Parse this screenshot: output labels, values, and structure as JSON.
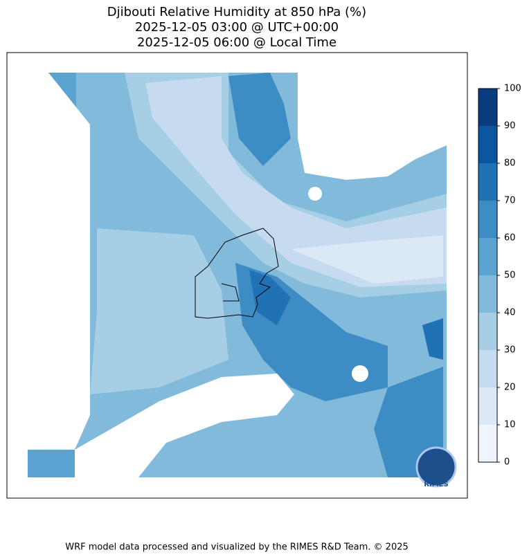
{
  "title": {
    "lines": [
      "Djibouti Relative Humidity at 850 hPa (%)",
      "2025-12-05 03:00 @ UTC+00:00",
      "2025-12-05 06:00 @ Local Time"
    ]
  },
  "colorbar": {
    "ticks": [
      0,
      10,
      20,
      30,
      40,
      50,
      60,
      70,
      80,
      90,
      100
    ],
    "colors": [
      "#eef5fc",
      "#dbe9f6",
      "#c6dbef",
      "#a6cee4",
      "#82badb",
      "#5ba3d0",
      "#3d8dc4",
      "#2171b5",
      "#0c56a0",
      "#083c7d"
    ]
  },
  "logo": {
    "text": "RIMES"
  },
  "footer": "WRF model data processed and visualized by the RIMES R&D Team. © 2025"
}
